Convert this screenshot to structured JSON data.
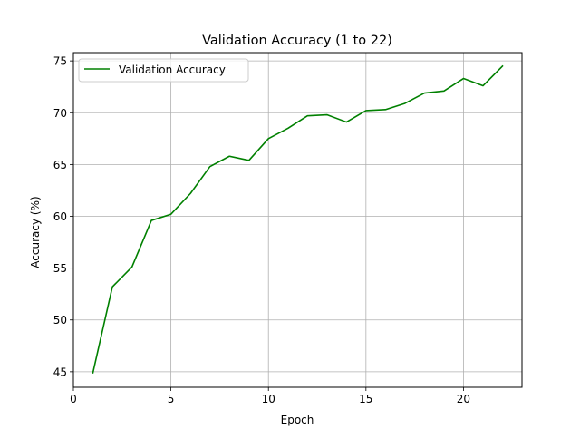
{
  "chart_data": {
    "type": "line",
    "title": "Validation Accuracy (1 to 22)",
    "xlabel": "Epoch",
    "ylabel": "Accuracy (%)",
    "xlim": [
      0,
      23
    ],
    "ylim": [
      43.5,
      75.8
    ],
    "xticks": [
      0,
      5,
      10,
      15,
      20
    ],
    "yticks": [
      45,
      50,
      55,
      60,
      65,
      70,
      75
    ],
    "grid": true,
    "legend_position": "upper-left",
    "series": [
      {
        "name": "Validation Accuracy",
        "color": "#008000",
        "x": [
          1,
          2,
          3,
          4,
          5,
          6,
          7,
          8,
          9,
          10,
          11,
          12,
          13,
          14,
          15,
          16,
          17,
          18,
          19,
          20,
          21,
          22
        ],
        "y": [
          44.9,
          53.2,
          55.1,
          59.6,
          60.2,
          62.2,
          64.8,
          65.8,
          65.4,
          67.5,
          68.5,
          69.7,
          69.8,
          69.1,
          70.2,
          70.3,
          70.9,
          71.9,
          72.1,
          73.3,
          72.6,
          74.5
        ]
      }
    ]
  }
}
